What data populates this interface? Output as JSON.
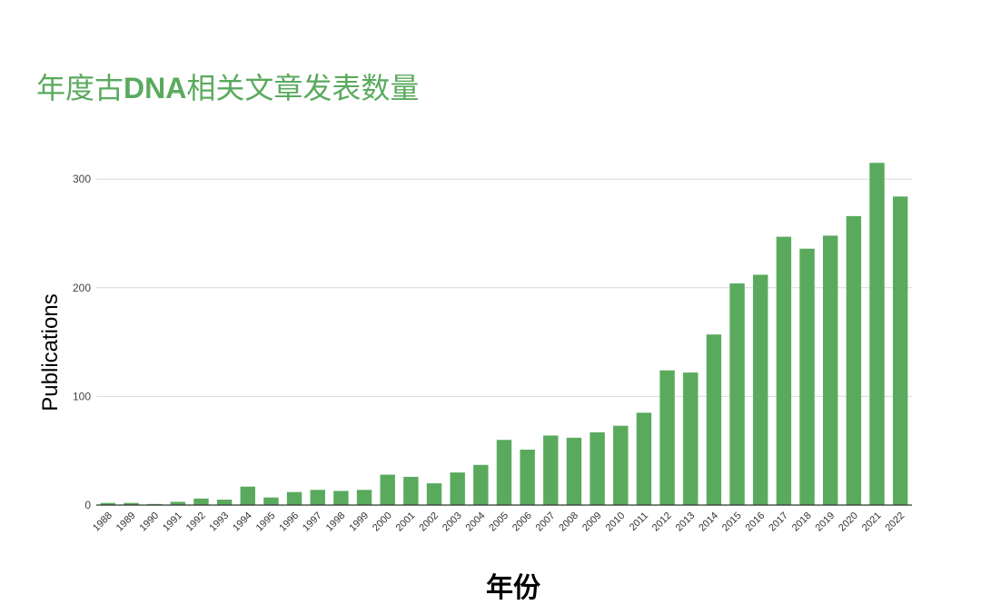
{
  "chart_data": {
    "type": "bar",
    "title_prefix": "年度古",
    "title_latin": "DNA",
    "title_suffix": "相关文章发表数量",
    "title": "年度古DNA相关文章发表数量",
    "xlabel": "年份",
    "ylabel": "Publications",
    "categories": [
      "1988",
      "1989",
      "1990",
      "1991",
      "1992",
      "1993",
      "1994",
      "1995",
      "1996",
      "1997",
      "1998",
      "1999",
      "2000",
      "2001",
      "2002",
      "2003",
      "2004",
      "2005",
      "2006",
      "2007",
      "2008",
      "2009",
      "2010",
      "2011",
      "2012",
      "2013",
      "2014",
      "2015",
      "2016",
      "2017",
      "2018",
      "2019",
      "2020",
      "2021",
      "2022"
    ],
    "values": [
      2,
      2,
      1,
      3,
      6,
      5,
      17,
      7,
      12,
      14,
      13,
      14,
      28,
      26,
      20,
      30,
      37,
      60,
      51,
      64,
      62,
      67,
      73,
      85,
      124,
      122,
      157,
      204,
      212,
      247,
      236,
      248,
      266,
      315,
      284
    ],
    "ylim": [
      0,
      340
    ],
    "yticks": [
      0,
      100,
      200,
      300
    ],
    "grid": true,
    "legend": "none",
    "bar_color": "#5aaa5e",
    "title_color": "#5aaa5e",
    "grid_color": "#d9d9d9",
    "axis_color": "#333333"
  }
}
